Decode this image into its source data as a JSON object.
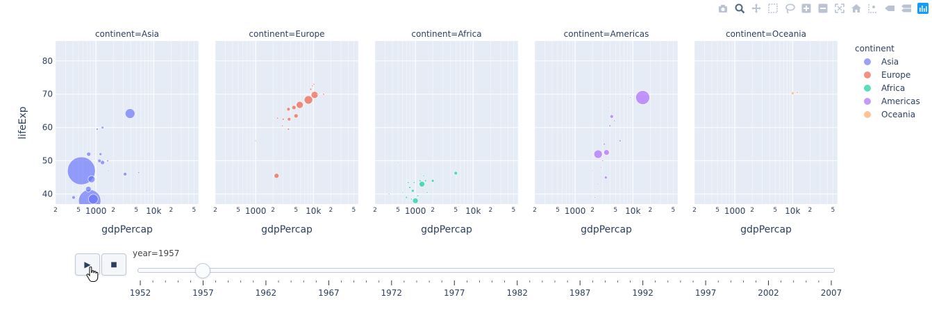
{
  "modebar": {
    "icons": [
      "camera-icon",
      "zoom-icon",
      "pan-icon",
      "box-select-icon",
      "lasso-icon",
      "zoom-in-icon",
      "zoom-out-icon",
      "autoscale-icon",
      "home-icon",
      "spike-lines-icon",
      "hover-closest-icon",
      "hover-compare-icon",
      "plotly-logo-icon"
    ]
  },
  "chart_data": {
    "type": "scatter",
    "facet_prefix": "continent=",
    "facets": [
      "Asia",
      "Europe",
      "Africa",
      "Americas",
      "Oceania"
    ],
    "xlabel": "gdpPercap",
    "ylabel": "lifeExp",
    "x_scale": "log",
    "xlim": [
      200,
      60000
    ],
    "ylim": [
      37,
      86
    ],
    "y_ticks": [
      40,
      50,
      60,
      70,
      80
    ],
    "x_ticks": [
      {
        "value": 200,
        "label": "2"
      },
      {
        "value": 500,
        "label": "5"
      },
      {
        "value": 1000,
        "label": "1000"
      },
      {
        "value": 2000,
        "label": "2"
      },
      {
        "value": 5000,
        "label": "5"
      },
      {
        "value": 10000,
        "label": "10k"
      },
      {
        "value": 20000,
        "label": "2"
      },
      {
        "value": 50000,
        "label": "5"
      }
    ],
    "legend": {
      "title": "continent",
      "position": "right",
      "entries": [
        {
          "name": "Asia",
          "color": "#636efa"
        },
        {
          "name": "Europe",
          "color": "#EF553B"
        },
        {
          "name": "Africa",
          "color": "#00cc96"
        },
        {
          "name": "Americas",
          "color": "#ab63fa"
        },
        {
          "name": "Oceania",
          "color": "#FFA15A"
        }
      ]
    },
    "points": {
      "Asia": [
        {
          "x": 560,
          "y": 47,
          "r": 20
        },
        {
          "x": 780,
          "y": 38,
          "r": 16
        },
        {
          "x": 900,
          "y": 38.5,
          "r": 7
        },
        {
          "x": 840,
          "y": 44.5,
          "r": 5
        },
        {
          "x": 740,
          "y": 41.5,
          "r": 4
        },
        {
          "x": 3900,
          "y": 64.2,
          "r": 7
        },
        {
          "x": 1300,
          "y": 49.5,
          "r": 3
        },
        {
          "x": 1150,
          "y": 50,
          "r": 2.5
        },
        {
          "x": 750,
          "y": 52,
          "r": 3
        },
        {
          "x": 1200,
          "y": 52,
          "r": 2
        },
        {
          "x": 1600,
          "y": 50,
          "r": 1.5
        },
        {
          "x": 1300,
          "y": 60,
          "r": 1.8
        },
        {
          "x": 1050,
          "y": 59.5,
          "r": 1.5
        },
        {
          "x": 3200,
          "y": 46,
          "r": 2.5
        },
        {
          "x": 5500,
          "y": 46.5,
          "r": 1.3
        },
        {
          "x": 410,
          "y": 39,
          "r": 2.5
        },
        {
          "x": 1650,
          "y": 47,
          "r": 1
        },
        {
          "x": 7500,
          "y": 41,
          "r": 1
        }
      ],
      "Europe": [
        {
          "x": 8200,
          "y": 68.3,
          "r": 6
        },
        {
          "x": 10500,
          "y": 69.8,
          "r": 5
        },
        {
          "x": 5800,
          "y": 66.8,
          "r": 5
        },
        {
          "x": 4600,
          "y": 66,
          "r": 3
        },
        {
          "x": 5000,
          "y": 63.5,
          "r": 3
        },
        {
          "x": 3700,
          "y": 65.5,
          "r": 2.5
        },
        {
          "x": 3800,
          "y": 62.5,
          "r": 2.5
        },
        {
          "x": 3000,
          "y": 62.5,
          "r": 1.5
        },
        {
          "x": 2400,
          "y": 62.8,
          "r": 1.3
        },
        {
          "x": 2300,
          "y": 45.5,
          "r": 3.5
        },
        {
          "x": 9000,
          "y": 71.5,
          "r": 1.5
        },
        {
          "x": 9600,
          "y": 72.5,
          "r": 1.2
        },
        {
          "x": 10200,
          "y": 73,
          "r": 1.2
        },
        {
          "x": 12000,
          "y": 70,
          "r": 1
        },
        {
          "x": 15000,
          "y": 70,
          "r": 1.3
        },
        {
          "x": 3700,
          "y": 59.5,
          "r": 1.5
        },
        {
          "x": 2900,
          "y": 60.5,
          "r": 1.2
        },
        {
          "x": 1000,
          "y": 56,
          "r": 1
        }
      ],
      "Africa": [
        {
          "x": 1300,
          "y": 43,
          "r": 4
        },
        {
          "x": 1000,
          "y": 38,
          "r": 4
        },
        {
          "x": 5000,
          "y": 46.3,
          "r": 2.5
        },
        {
          "x": 900,
          "y": 41,
          "r": 2
        },
        {
          "x": 800,
          "y": 42,
          "r": 1.5
        },
        {
          "x": 1200,
          "y": 44,
          "r": 1.5
        },
        {
          "x": 2000,
          "y": 44,
          "r": 2
        },
        {
          "x": 1500,
          "y": 44,
          "r": 1.5
        },
        {
          "x": 750,
          "y": 43.5,
          "r": 1.3
        },
        {
          "x": 950,
          "y": 43.5,
          "r": 1.3
        },
        {
          "x": 700,
          "y": 39,
          "r": 1.5
        },
        {
          "x": 1100,
          "y": 39.5,
          "r": 1.3
        },
        {
          "x": 1600,
          "y": 40.5,
          "r": 1.2
        },
        {
          "x": 1400,
          "y": 45.5,
          "r": 1.2
        },
        {
          "x": 850,
          "y": 38.5,
          "r": 1.2
        },
        {
          "x": 500,
          "y": 49.5,
          "r": 1
        },
        {
          "x": 600,
          "y": 40.5,
          "r": 1
        },
        {
          "x": 1250,
          "y": 46,
          "r": 1
        },
        {
          "x": 350,
          "y": 40,
          "r": 1
        }
      ],
      "Americas": [
        {
          "x": 14800,
          "y": 69,
          "r": 10
        },
        {
          "x": 2500,
          "y": 52,
          "r": 6
        },
        {
          "x": 3500,
          "y": 52.5,
          "r": 4
        },
        {
          "x": 4300,
          "y": 63.3,
          "r": 2.5
        },
        {
          "x": 3400,
          "y": 45,
          "r": 2
        },
        {
          "x": 6000,
          "y": 56,
          "r": 1.5
        },
        {
          "x": 4000,
          "y": 60.5,
          "r": 1.5
        },
        {
          "x": 3200,
          "y": 55,
          "r": 1.5
        },
        {
          "x": 3000,
          "y": 50,
          "r": 1.2
        },
        {
          "x": 4800,
          "y": 62,
          "r": 1.2
        },
        {
          "x": 2800,
          "y": 48,
          "r": 1
        },
        {
          "x": 2500,
          "y": 43,
          "r": 1
        },
        {
          "x": 2000,
          "y": 47,
          "r": 1
        },
        {
          "x": 2200,
          "y": 39,
          "r": 1
        },
        {
          "x": 3800,
          "y": 66,
          "r": 1
        },
        {
          "x": 9000,
          "y": 69,
          "r": 1
        },
        {
          "x": 2700,
          "y": 41,
          "r": 1
        }
      ],
      "Oceania": [
        {
          "x": 10000,
          "y": 70.3,
          "r": 2
        },
        {
          "x": 12000,
          "y": 70.5,
          "r": 1.5
        }
      ]
    }
  },
  "animation": {
    "play_label": "▶",
    "stop_label": "■",
    "current_label": "year=1957",
    "current_value": "1957",
    "years": [
      "1952",
      "1957",
      "1962",
      "1967",
      "1972",
      "1977",
      "1982",
      "1987",
      "1992",
      "1997",
      "2002",
      "2007"
    ]
  }
}
